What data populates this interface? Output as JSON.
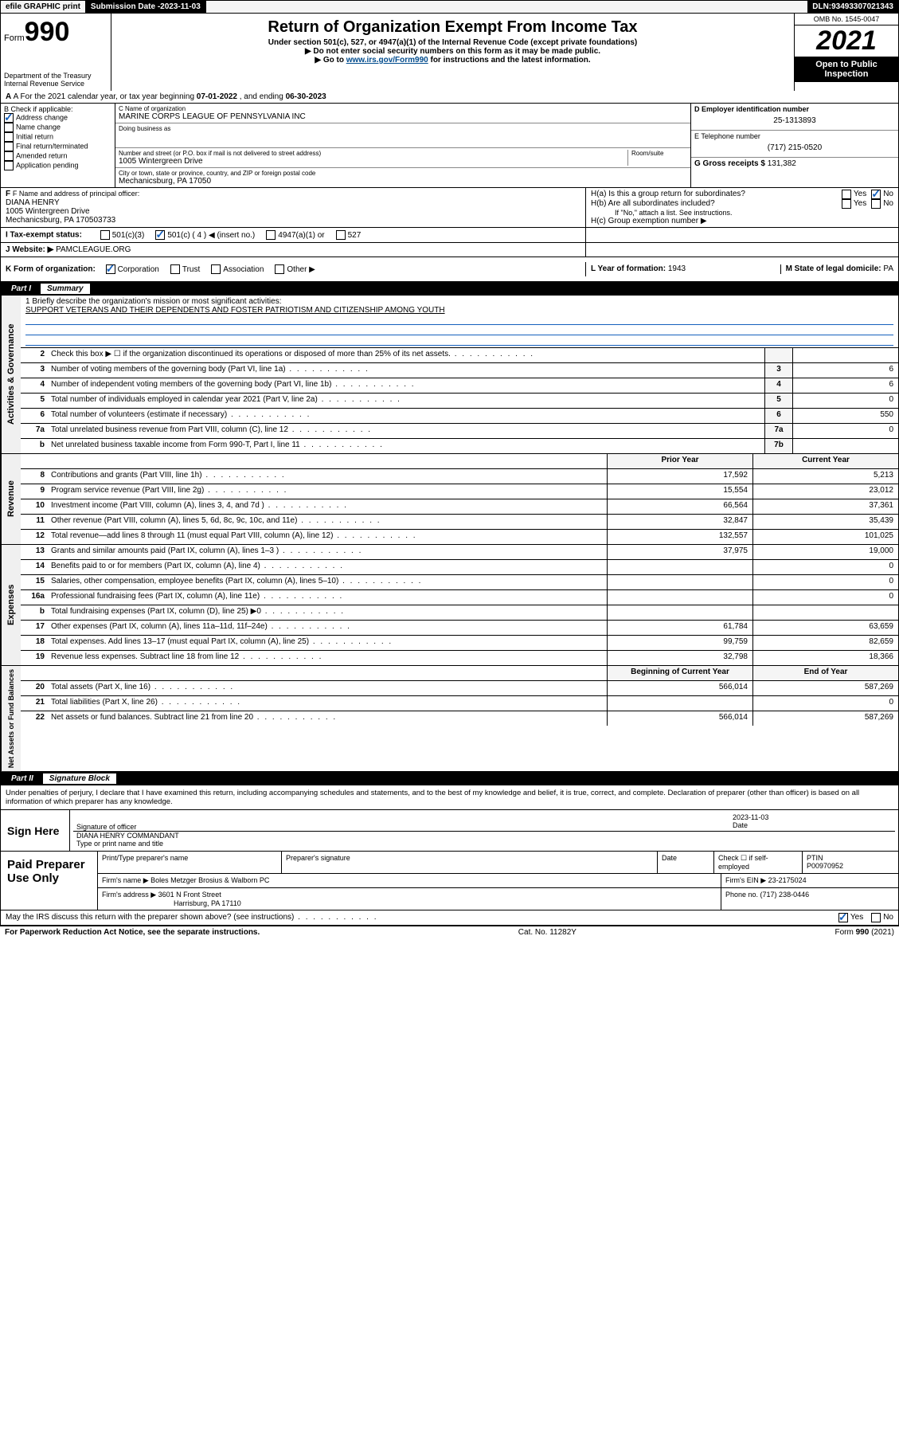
{
  "topbar": {
    "efile": "efile GRAPHIC print",
    "subdate_label": "Submission Date - ",
    "subdate": "2023-11-03",
    "dln_label": "DLN: ",
    "dln": "93493307021343"
  },
  "header": {
    "form_prefix": "Form",
    "form_no": "990",
    "dept": "Department of the Treasury",
    "irs": "Internal Revenue Service",
    "title": "Return of Organization Exempt From Income Tax",
    "sub1": "Under section 501(c), 527, or 4947(a)(1) of the Internal Revenue Code (except private foundations)",
    "sub2": "▶ Do not enter social security numbers on this form as it may be made public.",
    "sub3_pre": "▶ Go to ",
    "sub3_link": "www.irs.gov/Form990",
    "sub3_post": " for instructions and the latest information.",
    "omb": "OMB No. 1545-0047",
    "year": "2021",
    "open": "Open to Public Inspection"
  },
  "line_a": {
    "pre": "A For the 2021 calendar year, or tax year beginning ",
    "begin": "07-01-2022",
    "mid": " , and ending ",
    "end": "06-30-2023"
  },
  "col_b": {
    "label": "B Check if applicable:",
    "items": [
      "Address change",
      "Name change",
      "Initial return",
      "Final return/terminated",
      "Amended return",
      "Application pending"
    ],
    "checked_index": 0
  },
  "col_c": {
    "name_label": "C Name of organization",
    "name": "MARINE CORPS LEAGUE OF PENNSYLVANIA INC",
    "dba_label": "Doing business as",
    "dba": "",
    "addr_label": "Number and street (or P.O. box if mail is not delivered to street address)",
    "room_label": "Room/suite",
    "addr": "1005 Wintergreen Drive",
    "city_label": "City or town, state or province, country, and ZIP or foreign postal code",
    "city": "Mechanicsburg, PA  17050"
  },
  "col_de": {
    "d_label": "D Employer identification number",
    "d_val": "25-1313893",
    "e_label": "E Telephone number",
    "e_val": "(717) 215-0520",
    "g_label": "G Gross receipts $ ",
    "g_val": "131,382"
  },
  "block_f": {
    "label": "F Name and address of principal officer:",
    "name": "DIANA HENRY",
    "addr1": "1005 Wintergreen Drive",
    "addr2": "Mechanicsburg, PA  170503733"
  },
  "block_h": {
    "a": "H(a)  Is this a group return for subordinates?",
    "a_yes": "Yes",
    "a_no": "No",
    "b": "H(b)  Are all subordinates included?",
    "b_note": "If \"No,\" attach a list. See instructions.",
    "c": "H(c)  Group exemption number ▶"
  },
  "row_i": {
    "label": "I     Tax-exempt status:",
    "opts": [
      "501(c)(3)",
      "501(c) ( 4 ) ◀ (insert no.)",
      "4947(a)(1) or",
      "527"
    ],
    "checked_index": 1
  },
  "row_j": {
    "label": "J     Website: ▶ ",
    "val": "PAMCLEAGUE.ORG"
  },
  "row_k": {
    "label": "K Form of organization:",
    "opts": [
      "Corporation",
      "Trust",
      "Association",
      "Other ▶"
    ],
    "checked_index": 0,
    "l_label": "L Year of formation: ",
    "l_val": "1943",
    "m_label": "M State of legal domicile: ",
    "m_val": "PA"
  },
  "part1": {
    "num": "Part I",
    "title": "Summary"
  },
  "mission": {
    "q": "1   Briefly describe the organization's mission or most significant activities:",
    "text": "SUPPORT VETERANS AND THEIR DEPENDENTS AND FOSTER PATRIOTISM AND CITIZENSHIP AMONG YOUTH"
  },
  "gov_rows": [
    {
      "n": "2",
      "d": "Check this box ▶ ☐  if the organization discontinued its operations or disposed of more than 25% of its net assets.",
      "b": "",
      "v": ""
    },
    {
      "n": "3",
      "d": "Number of voting members of the governing body (Part VI, line 1a)",
      "b": "3",
      "v": "6"
    },
    {
      "n": "4",
      "d": "Number of independent voting members of the governing body (Part VI, line 1b)",
      "b": "4",
      "v": "6"
    },
    {
      "n": "5",
      "d": "Total number of individuals employed in calendar year 2021 (Part V, line 2a)",
      "b": "5",
      "v": "0"
    },
    {
      "n": "6",
      "d": "Total number of volunteers (estimate if necessary)",
      "b": "6",
      "v": "550"
    },
    {
      "n": "7a",
      "d": "Total unrelated business revenue from Part VIII, column (C), line 12",
      "b": "7a",
      "v": "0"
    },
    {
      "n": "b",
      "d": "Net unrelated business taxable income from Form 990-T, Part I, line 11",
      "b": "7b",
      "v": ""
    }
  ],
  "rev_header": {
    "py": "Prior Year",
    "cy": "Current Year"
  },
  "rev_rows": [
    {
      "n": "8",
      "d": "Contributions and grants (Part VIII, line 1h)",
      "py": "17,592",
      "cy": "5,213"
    },
    {
      "n": "9",
      "d": "Program service revenue (Part VIII, line 2g)",
      "py": "15,554",
      "cy": "23,012"
    },
    {
      "n": "10",
      "d": "Investment income (Part VIII, column (A), lines 3, 4, and 7d )",
      "py": "66,564",
      "cy": "37,361"
    },
    {
      "n": "11",
      "d": "Other revenue (Part VIII, column (A), lines 5, 6d, 8c, 9c, 10c, and 11e)",
      "py": "32,847",
      "cy": "35,439"
    },
    {
      "n": "12",
      "d": "Total revenue—add lines 8 through 11 (must equal Part VIII, column (A), line 12)",
      "py": "132,557",
      "cy": "101,025"
    }
  ],
  "exp_rows": [
    {
      "n": "13",
      "d": "Grants and similar amounts paid (Part IX, column (A), lines 1–3 )",
      "py": "37,975",
      "cy": "19,000"
    },
    {
      "n": "14",
      "d": "Benefits paid to or for members (Part IX, column (A), line 4)",
      "py": "",
      "cy": "0"
    },
    {
      "n": "15",
      "d": "Salaries, other compensation, employee benefits (Part IX, column (A), lines 5–10)",
      "py": "",
      "cy": "0"
    },
    {
      "n": "16a",
      "d": "Professional fundraising fees (Part IX, column (A), line 11e)",
      "py": "",
      "cy": "0"
    },
    {
      "n": "b",
      "d": "Total fundraising expenses (Part IX, column (D), line 25) ▶0",
      "py": "grey",
      "cy": "grey"
    },
    {
      "n": "17",
      "d": "Other expenses (Part IX, column (A), lines 11a–11d, 11f–24e)",
      "py": "61,784",
      "cy": "63,659"
    },
    {
      "n": "18",
      "d": "Total expenses. Add lines 13–17 (must equal Part IX, column (A), line 25)",
      "py": "99,759",
      "cy": "82,659"
    },
    {
      "n": "19",
      "d": "Revenue less expenses. Subtract line 18 from line 12",
      "py": "32,798",
      "cy": "18,366"
    }
  ],
  "net_header": {
    "py": "Beginning of Current Year",
    "cy": "End of Year"
  },
  "net_rows": [
    {
      "n": "20",
      "d": "Total assets (Part X, line 16)",
      "py": "566,014",
      "cy": "587,269"
    },
    {
      "n": "21",
      "d": "Total liabilities (Part X, line 26)",
      "py": "",
      "cy": "0"
    },
    {
      "n": "22",
      "d": "Net assets or fund balances. Subtract line 21 from line 20",
      "py": "566,014",
      "cy": "587,269"
    }
  ],
  "vert_labels": {
    "gov": "Activities & Governance",
    "rev": "Revenue",
    "exp": "Expenses",
    "net": "Net Assets or Fund Balances"
  },
  "part2": {
    "num": "Part II",
    "title": "Signature Block"
  },
  "sig": {
    "intro": "Under penalties of perjury, I declare that I have examined this return, including accompanying schedules and statements, and to the best of my knowledge and belief, it is true, correct, and complete. Declaration of preparer (other than officer) is based on all information of which preparer has any knowledge.",
    "sign_here": "Sign Here",
    "sig_officer": "Signature of officer",
    "date_label": "Date",
    "date": "2023-11-03",
    "name_title": "DIANA HENRY COMMANDANT",
    "name_label": "Type or print name and title"
  },
  "paid": {
    "label": "Paid Preparer Use Only",
    "h1": "Print/Type preparer's name",
    "h2": "Preparer's signature",
    "h3": "Date",
    "h4_pre": "Check ☐ if self-employed",
    "h5": "PTIN",
    "ptin": "P00970952",
    "firm_name_label": "Firm's name   ▶ ",
    "firm_name": "Boles Metzger Brosius & Walborn PC",
    "firm_ein_label": "Firm's EIN ▶ ",
    "firm_ein": "23-2175024",
    "firm_addr_label": "Firm's address ▶ ",
    "firm_addr1": "3601 N Front Street",
    "firm_addr2": "Harrisburg, PA  17110",
    "phone_label": "Phone no. ",
    "phone": "(717) 238-0446"
  },
  "discuss": {
    "q": "May the IRS discuss this return with the preparer shown above? (see instructions)",
    "yes": "Yes",
    "no": "No"
  },
  "footer": {
    "l": "For Paperwork Reduction Act Notice, see the separate instructions.",
    "c": "Cat. No. 11282Y",
    "r": "Form 990 (2021)"
  }
}
